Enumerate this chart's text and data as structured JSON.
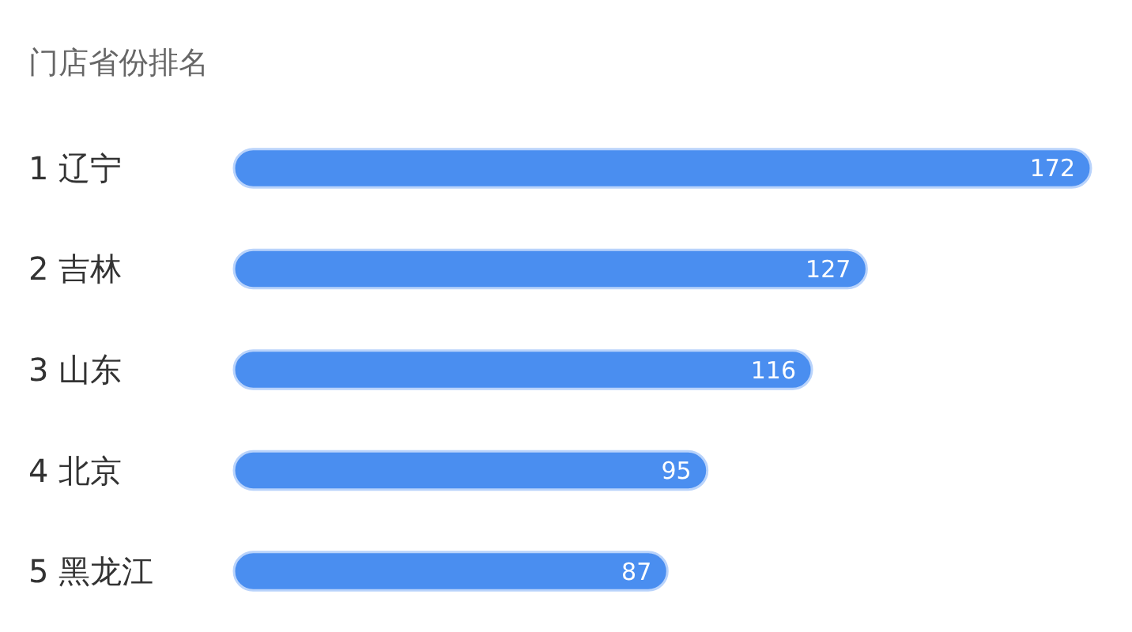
{
  "chart_data": {
    "type": "bar",
    "orientation": "horizontal",
    "title": "门店省份排名",
    "categories": [
      "1 辽宁",
      "2 吉林",
      "3 山东",
      "4 北京",
      "5 黑龙江"
    ],
    "values": [
      172,
      127,
      116,
      95,
      87
    ],
    "color": "#4a8ef0",
    "data_labels": true
  }
}
